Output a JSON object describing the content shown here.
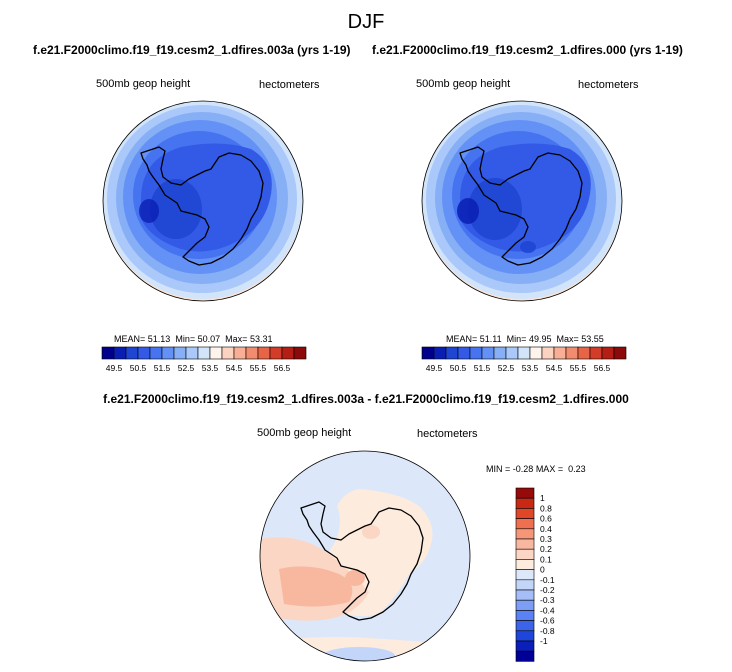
{
  "main_title": "DJF",
  "colors": {
    "full_field": [
      "#00008c",
      "#0a1eb4",
      "#1e46d2",
      "#325ae6",
      "#4673f0",
      "#6491f5",
      "#87aff5",
      "#aac8fa",
      "#d2e4fa",
      "#fff4ec",
      "#fcd2c0",
      "#f8af96",
      "#f28c6e",
      "#e86446",
      "#d23c28",
      "#b41e14",
      "#8c0a0a"
    ],
    "diff_field": [
      "#000096",
      "#0a1eb9",
      "#1e46dc",
      "#3c64eb",
      "#5a82f5",
      "#7d9ef5",
      "#a5bef8",
      "#c3d6fa",
      "#dce8fa",
      "#fdebdd",
      "#fcd6c4",
      "#f8b8a0",
      "#f59678",
      "#ee7050",
      "#e04628",
      "#c82814",
      "#960a0a"
    ]
  },
  "chart_data": [
    {
      "type": "heatmap",
      "panel": "top-left",
      "title": "f.e21.F2000climo.f19_f19.cesm2_1.dfires.003a (yrs 1-19)",
      "left_label": "500mb geop height",
      "right_label": "hectometers",
      "stats": {
        "mean_label": "MEAN=",
        "mean": "51.13",
        "min_label": "Min=",
        "min": "50.07",
        "max_label": "Max=",
        "max": "53.31"
      },
      "colorbar_ticks": [
        "49.5",
        "50.5",
        "51.5",
        "52.5",
        "53.5",
        "54.5",
        "55.5",
        "56.5"
      ],
      "colorbar_levels": [
        49.5,
        50,
        50.5,
        51,
        51.5,
        52,
        52.5,
        53,
        53.5,
        54,
        54.5,
        55,
        55.5,
        56,
        56.5
      ]
    },
    {
      "type": "heatmap",
      "panel": "top-right",
      "title": "f.e21.F2000climo.f19_f19.cesm2_1.dfires.000 (yrs 1-19)",
      "left_label": "500mb geop height",
      "right_label": "hectometers",
      "stats": {
        "mean_label": "MEAN=",
        "mean": "51.11",
        "min_label": "Min=",
        "min": "49.95",
        "max_label": "Max=",
        "max": "53.55"
      },
      "colorbar_ticks": [
        "49.5",
        "50.5",
        "51.5",
        "52.5",
        "53.5",
        "54.5",
        "55.5",
        "56.5"
      ],
      "colorbar_levels": [
        49.5,
        50,
        50.5,
        51,
        51.5,
        52,
        52.5,
        53,
        53.5,
        54,
        54.5,
        55,
        55.5,
        56,
        56.5
      ]
    },
    {
      "type": "heatmap",
      "panel": "bottom",
      "title": "f.e21.F2000climo.f19_f19.cesm2_1.dfires.003a - f.e21.F2000climo.f19_f19.cesm2_1.dfires.000",
      "left_label": "500mb geop height",
      "right_label": "hectometers",
      "stats": {
        "min_label": "MIN =",
        "min": "-0.28",
        "max_label": "MAX =",
        "max": "0.23"
      },
      "colorbar_ticks": [
        "1",
        "0.8",
        "0.6",
        "0.4",
        "0.3",
        "0.2",
        "0.1",
        "0",
        "-0.1",
        "-0.2",
        "-0.3",
        "-0.4",
        "-0.6",
        "-0.8",
        "-1"
      ]
    }
  ]
}
